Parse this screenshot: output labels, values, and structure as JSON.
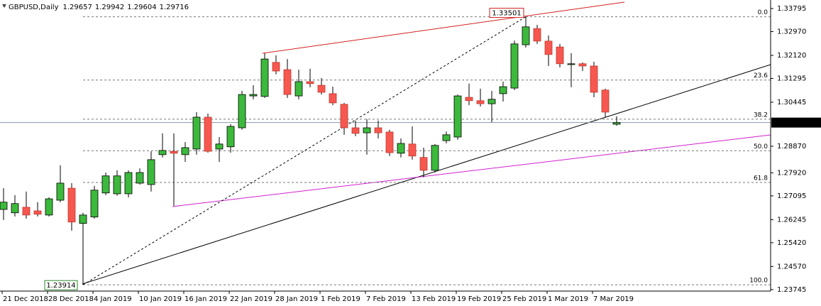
{
  "chart_data": {
    "type": "candlestick",
    "title": "GBPUSD,Daily",
    "categories": [
      "21 Dec 2018",
      null,
      null,
      null,
      "28 Dec 2018",
      null,
      null,
      null,
      "4 Jan 2019",
      null,
      null,
      null,
      "10 Jan 2019",
      null,
      null,
      null,
      "16 Jan 2019",
      null,
      null,
      null,
      "22 Jan 2019",
      null,
      null,
      null,
      "28 Jan 2019",
      null,
      null,
      null,
      "1 Feb 2019",
      null,
      null,
      null,
      "7 Feb 2019",
      null,
      null,
      null,
      "13 Feb 2019",
      null,
      null,
      null,
      "19 Feb 2019",
      null,
      null,
      null,
      "25 Feb 2019",
      null,
      null,
      null,
      "1 Mar 2019",
      null,
      null,
      null,
      "7 Mar 2019",
      null,
      null
    ],
    "open": [
      1.2661,
      1.2649,
      1.2669,
      1.2656,
      1.2641,
      1.2694,
      1.2737,
      1.2611,
      1.2634,
      1.272,
      1.2717,
      1.2717,
      1.2755,
      1.275,
      1.2857,
      1.2869,
      1.2857,
      1.2877,
      1.2991,
      1.2877,
      1.2885,
      1.2953,
      1.3067,
      1.3065,
      1.3187,
      1.3161,
      1.3067,
      1.3118,
      1.3105,
      1.3075,
      1.3037,
      1.2953,
      1.2935,
      1.2953,
      1.2938,
      1.2862,
      1.2895,
      1.2847,
      1.2801,
      1.2907,
      1.292,
      1.3062,
      1.305,
      1.3039,
      1.3075,
      1.3095,
      1.325,
      1.3308,
      1.3263,
      1.3242,
      1.3179,
      1.3182,
      1.3174,
      1.3088,
      1.29657
    ],
    "high": [
      1.2737,
      1.2712,
      1.2725,
      1.2687,
      1.2704,
      1.2819,
      1.2755,
      1.2649,
      1.2745,
      1.2793,
      1.2801,
      1.2801,
      1.2808,
      1.2869,
      1.2933,
      1.2933,
      1.2902,
      1.3009,
      1.3004,
      1.292,
      1.2966,
      1.3085,
      1.3105,
      1.322,
      1.3212,
      1.3199,
      1.3161,
      1.3164,
      1.3131,
      1.31,
      1.3042,
      1.2979,
      1.2984,
      1.2979,
      1.2946,
      1.2915,
      1.2958,
      1.2882,
      1.2895,
      1.294,
      1.3072,
      1.3111,
      1.3093,
      1.3085,
      1.3118,
      1.3265,
      1.33501,
      1.3321,
      1.3283,
      1.3253,
      1.322,
      1.3187,
      1.3189,
      1.3093,
      1.29942
    ],
    "low": [
      1.2623,
      1.2636,
      1.2628,
      1.2636,
      1.2636,
      1.2687,
      1.2585,
      1.23914,
      1.2628,
      1.2712,
      1.271,
      1.2704,
      1.275,
      1.2725,
      1.2847,
      1.2674,
      1.2831,
      1.2857,
      1.2864,
      1.2831,
      1.2864,
      1.2946,
      1.3055,
      1.306,
      1.3144,
      1.306,
      1.3055,
      1.3098,
      1.3072,
      1.3034,
      1.2928,
      1.2923,
      1.2857,
      1.2915,
      1.2852,
      1.2847,
      1.2839,
      1.2776,
      1.2793,
      1.2897,
      1.291,
      1.3034,
      1.3029,
      1.2973,
      1.3047,
      1.3088,
      1.324,
      1.3253,
      1.3174,
      1.3169,
      1.3098,
      1.3156,
      1.3062,
      1.2991,
      1.29604
    ],
    "close": [
      1.2687,
      1.2682,
      1.2641,
      1.2644,
      1.2699,
      1.2755,
      1.2616,
      1.2641,
      1.273,
      1.2781,
      1.2781,
      1.2793,
      1.2793,
      1.2839,
      1.2872,
      1.2862,
      1.2882,
      1.2991,
      1.2869,
      1.2895,
      1.2958,
      1.3072,
      1.3072,
      1.3199,
      1.3156,
      1.3072,
      1.3118,
      1.3111,
      1.308,
      1.3042,
      1.2953,
      1.2933,
      1.2953,
      1.2935,
      1.2864,
      1.2897,
      1.2852,
      1.2801,
      1.289,
      1.2928,
      1.3067,
      1.305,
      1.3039,
      1.3055,
      1.31,
      1.3253,
      1.3314,
      1.3263,
      1.3215,
      1.3182,
      1.3182,
      1.3174,
      1.308,
      1.3009,
      1.29716
    ],
    "up_color": "#3cb93c",
    "down_color": "#f6574f",
    "ylim": [
      1.2369,
      1.341
    ],
    "yticks": [
      1.33795,
      {
        "value": 1.3297,
        "label": "1.32970"
      },
      {
        "value": 1.3212,
        "label": "1.32120"
      },
      1.31295,
      1.30445,
      {
        "value": 1.2887,
        "label": "1.28870"
      },
      {
        "value": 1.2792,
        "label": "1.27920"
      },
      1.27095,
      1.26245,
      {
        "value": 1.2542,
        "label": "1.25420"
      },
      {
        "value": 1.2457,
        "label": "1.24570"
      },
      1.23745
    ],
    "fibonacci": {
      "levels": [
        {
          "value": 0,
          "label": "0.0"
        },
        23.6,
        38.2,
        {
          "value": 50,
          "label": "50.0"
        },
        61.8,
        {
          "value": 100,
          "label": "100.0"
        }
      ]
    }
  }
}
